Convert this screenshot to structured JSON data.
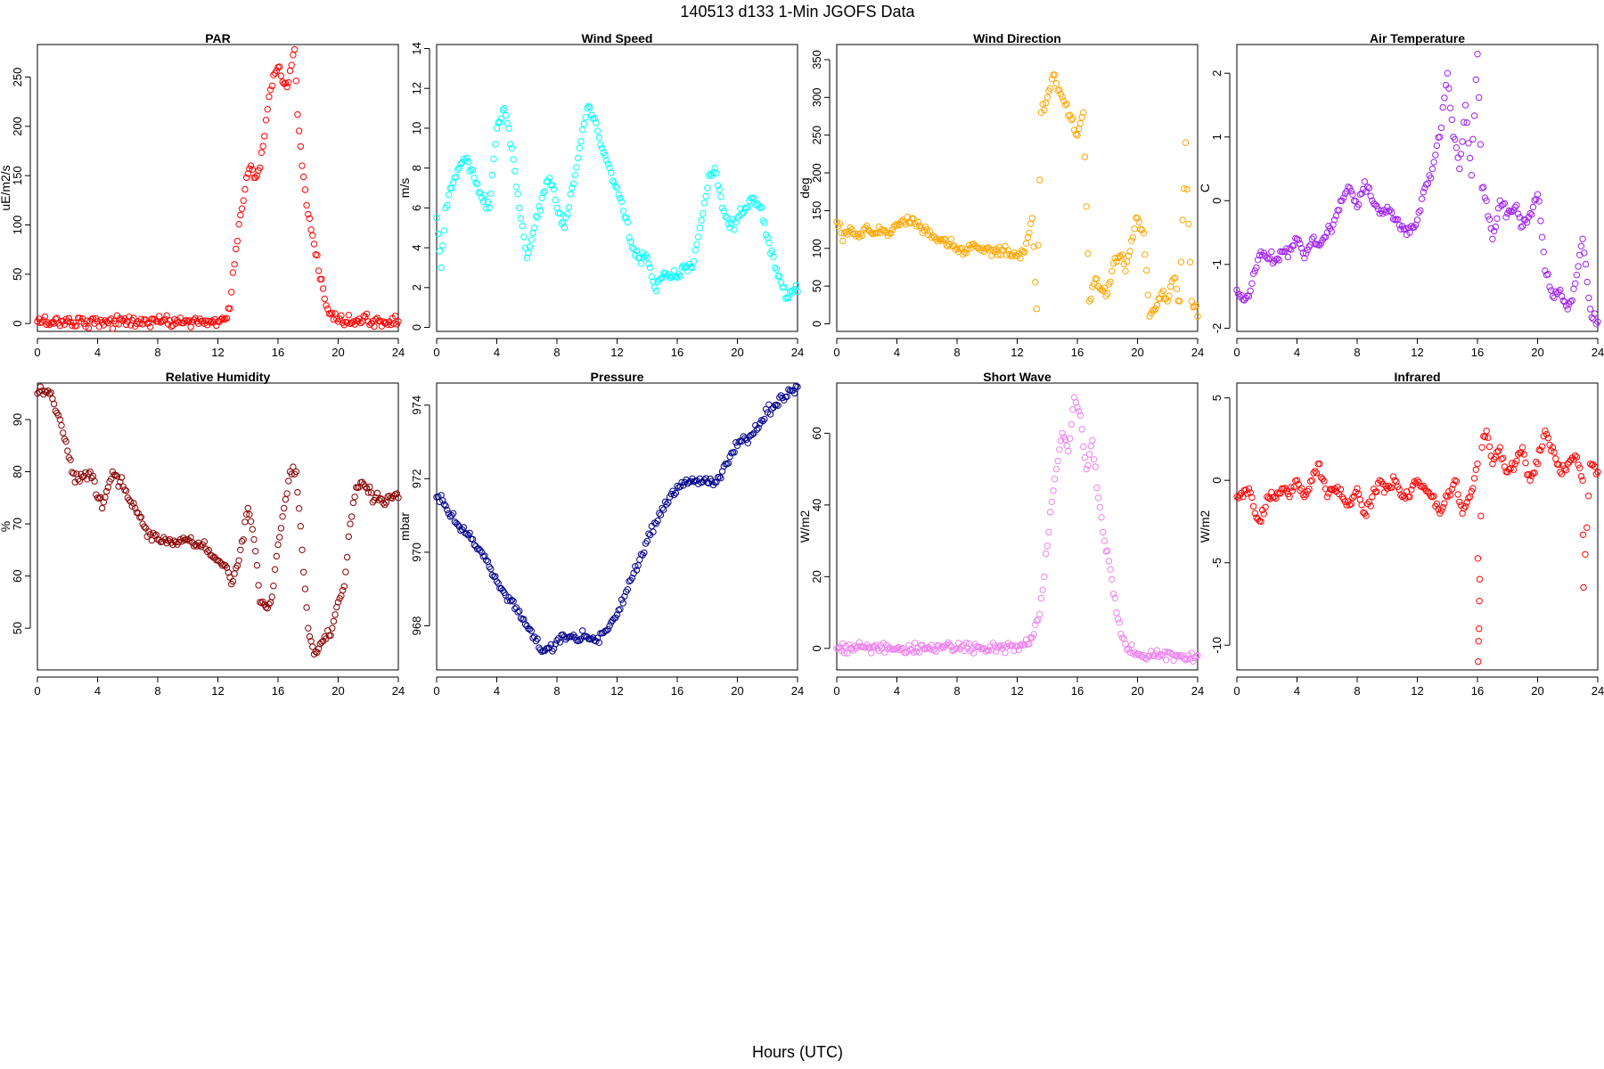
{
  "figure": {
    "title": "140513   d133   1-Min  JGOFS Data",
    "xlabel": "Hours (UTC)"
  },
  "chart_data": [
    {
      "type": "scatter",
      "title": "PAR",
      "ylabel": "uE/m2/s",
      "color": "#ff0000",
      "xlim": [
        0,
        24
      ],
      "ylim": [
        -8,
        283
      ],
      "xticks": [
        0,
        4,
        8,
        12,
        16,
        20,
        24
      ],
      "yticks": [
        0,
        50,
        100,
        150,
        200,
        250
      ],
      "series": [
        {
          "x": [
            0,
            2,
            4,
            6,
            8,
            10,
            12,
            12.4,
            12.8,
            13.1,
            13.5,
            13.9,
            14.2,
            14.5,
            14.8,
            15.1,
            15.4,
            15.7,
            16,
            16.3,
            16.6,
            16.9,
            17.1,
            17.3,
            17.6,
            17.9,
            18.2,
            18.5,
            18.8,
            19.1,
            19.4,
            19.7,
            20,
            21,
            22,
            23,
            24
          ],
          "y": [
            2,
            2,
            2,
            2,
            2,
            2,
            2,
            4,
            15,
            60,
            110,
            148,
            160,
            148,
            158,
            190,
            230,
            252,
            260,
            245,
            240,
            262,
            278,
            212,
            160,
            120,
            95,
            70,
            45,
            25,
            10,
            4,
            2,
            2,
            2,
            2,
            2
          ]
        }
      ]
    },
    {
      "type": "scatter",
      "title": "Wind Speed",
      "ylabel": "m/s",
      "color": "#00ffff",
      "xlim": [
        0,
        24
      ],
      "ylim": [
        -0.2,
        14.2
      ],
      "xticks": [
        0,
        4,
        8,
        12,
        16,
        20,
        24
      ],
      "yticks": [
        0,
        2,
        4,
        6,
        8,
        10,
        12,
        14
      ],
      "series": [
        {
          "x": [
            0,
            0.3,
            0.6,
            1,
            1.5,
            2,
            2.5,
            3,
            3.5,
            4,
            4.5,
            5,
            5.5,
            6,
            6.5,
            7,
            7.5,
            8,
            8.5,
            9,
            9.5,
            10,
            10.5,
            11,
            11.5,
            12,
            12.5,
            13,
            13.5,
            14,
            14.5,
            15,
            15.5,
            16,
            16.5,
            17,
            17.5,
            18,
            18.5,
            19,
            19.5,
            20,
            20.5,
            21,
            21.5,
            22,
            22.5,
            23,
            23.5,
            24
          ],
          "y": [
            5.5,
            3,
            6,
            7,
            8,
            8.5,
            7.5,
            6.5,
            6,
            10,
            11,
            9,
            6,
            3.5,
            5,
            6.5,
            7.5,
            6,
            5,
            7,
            9,
            11,
            10.5,
            9,
            8,
            7,
            5.5,
            4,
            3.5,
            3.5,
            2,
            2.5,
            2.5,
            2.5,
            3,
            3,
            5,
            7,
            8,
            6,
            5,
            5.5,
            6,
            6.5,
            6,
            4.5,
            3,
            2,
            1.8,
            1.8
          ]
        }
      ]
    },
    {
      "type": "scatter",
      "title": "Wind Direction",
      "ylabel": "deg",
      "color": "#ffa500",
      "xlim": [
        0,
        24
      ],
      "ylim": [
        -10,
        370
      ],
      "xticks": [
        0,
        4,
        8,
        12,
        16,
        20,
        24
      ],
      "yticks": [
        0,
        50,
        100,
        150,
        200,
        250,
        300,
        350
      ],
      "series": [
        {
          "x": [
            0,
            0.5,
            1,
            1.5,
            2,
            2.5,
            3,
            3.5,
            4,
            4.5,
            5,
            5.5,
            6,
            6.5,
            7,
            7.5,
            8,
            8.5,
            9,
            9.5,
            10,
            10.5,
            11,
            11.5,
            12,
            12.5,
            13,
            13.3,
            13.6,
            14,
            14.4,
            14.8,
            15.2,
            15.6,
            16,
            16.4,
            16.8,
            17.2,
            17.6,
            18,
            18.4,
            18.8,
            19.2,
            19.6,
            20,
            20.4,
            20.8,
            21.2,
            21.6,
            22,
            22.4,
            22.8,
            23.2,
            23.6,
            24
          ],
          "y": [
            135,
            120,
            125,
            115,
            130,
            120,
            125,
            120,
            130,
            135,
            140,
            130,
            125,
            115,
            110,
            105,
            100,
            95,
            105,
            100,
            100,
            95,
            98,
            92,
            90,
            95,
            140,
            20,
            280,
            300,
            330,
            310,
            290,
            270,
            250,
            280,
            30,
            60,
            45,
            40,
            80,
            90,
            70,
            110,
            140,
            120,
            10,
            20,
            40,
            30,
            60,
            30,
            240,
            30,
            10
          ]
        }
      ]
    },
    {
      "type": "scatter",
      "title": "Air Temperature",
      "ylabel": "C",
      "color": "#a020f0",
      "xlim": [
        0,
        24
      ],
      "ylim": [
        -2.05,
        2.45
      ],
      "xticks": [
        0,
        4,
        8,
        12,
        16,
        20,
        24
      ],
      "yticks": [
        -2,
        -1,
        0,
        1,
        2
      ],
      "series": [
        {
          "x": [
            0,
            0.4,
            0.8,
            1.2,
            1.6,
            2,
            2.5,
            3,
            3.5,
            4,
            4.5,
            5,
            5.5,
            6,
            6.5,
            7,
            7.5,
            8,
            8.5,
            9,
            9.5,
            10,
            10.5,
            11,
            11.5,
            12,
            12.5,
            13,
            13.5,
            14,
            14.4,
            14.8,
            15.2,
            15.6,
            16,
            16.3,
            16.6,
            17,
            17.5,
            18,
            18.5,
            19,
            19.5,
            20,
            20.5,
            21,
            21.5,
            22,
            22.5,
            23,
            23.5,
            24
          ],
          "y": [
            -1.4,
            -1.55,
            -1.5,
            -1.1,
            -0.8,
            -0.9,
            -0.95,
            -0.8,
            -0.75,
            -0.6,
            -0.9,
            -0.6,
            -0.7,
            -0.5,
            -0.3,
            0,
            0.2,
            -0.1,
            0.3,
            0,
            -0.2,
            -0.1,
            -0.3,
            -0.4,
            -0.5,
            -0.3,
            0.2,
            0.5,
            1,
            2,
            1,
            0.5,
            1.5,
            0.4,
            2.3,
            0.2,
            0,
            -0.6,
            0,
            -0.2,
            -0.1,
            -0.4,
            -0.2,
            0.1,
            -1.1,
            -1.5,
            -1.4,
            -1.7,
            -1.3,
            -0.6,
            -1.7,
            -1.9
          ]
        }
      ]
    },
    {
      "type": "scatter",
      "title": "Relative Humidity",
      "ylabel": "%",
      "color": "#8b0000",
      "xlim": [
        0,
        24
      ],
      "ylim": [
        42,
        97
      ],
      "xticks": [
        0,
        4,
        8,
        12,
        16,
        20,
        24
      ],
      "yticks": [
        50,
        60,
        70,
        80,
        90
      ],
      "series": [
        {
          "x": [
            0,
            0.3,
            0.7,
            1,
            1.5,
            2,
            2.5,
            3,
            3.5,
            4,
            4.3,
            4.7,
            5,
            5.5,
            6,
            6.5,
            7,
            7.5,
            8,
            8.5,
            9,
            9.5,
            10,
            10.5,
            11,
            11.5,
            12,
            12.5,
            13,
            13.5,
            14,
            14.4,
            14.8,
            15.2,
            15.6,
            16,
            16.4,
            16.8,
            17.2,
            17.6,
            18,
            18.4,
            18.8,
            19.2,
            19.6,
            20,
            20.4,
            20.8,
            21.2,
            21.6,
            22,
            22.5,
            23,
            23.5,
            24
          ],
          "y": [
            95,
            95.5,
            95.5,
            94,
            90,
            84,
            78,
            79,
            80,
            75,
            73,
            77,
            80,
            78,
            75,
            73,
            70,
            68,
            67,
            67,
            66,
            67,
            67,
            66,
            66,
            64,
            63,
            62,
            59,
            65,
            73,
            67,
            55,
            54,
            56,
            66,
            73,
            80,
            80,
            65,
            50,
            45,
            47,
            48,
            50,
            55,
            58,
            70,
            77,
            78,
            76,
            75,
            74,
            75,
            75
          ]
        }
      ]
    },
    {
      "type": "scatter",
      "title": "Pressure",
      "ylabel": "mbar",
      "color": "#00008b",
      "xlim": [
        0,
        24
      ],
      "ylim": [
        966.8,
        974.6
      ],
      "xticks": [
        0,
        4,
        8,
        12,
        16,
        20,
        24
      ],
      "yticks": [
        968,
        970,
        972,
        974
      ],
      "series": [
        {
          "x": [
            0,
            0.5,
            1,
            1.5,
            2,
            2.5,
            3,
            3.5,
            4,
            4.5,
            5,
            5.5,
            6,
            6.5,
            7,
            7.5,
            8,
            8.5,
            9,
            9.5,
            10,
            10.5,
            11,
            11.5,
            12,
            12.5,
            13,
            13.5,
            14,
            14.5,
            15,
            15.5,
            16,
            16.5,
            17,
            17.5,
            18,
            18.5,
            19,
            19.5,
            20,
            20.5,
            21,
            21.5,
            22,
            22.5,
            23,
            23.5,
            24
          ],
          "y": [
            971.5,
            971.3,
            971,
            970.7,
            970.5,
            970.2,
            970,
            969.6,
            969.2,
            968.9,
            968.7,
            968.4,
            968,
            967.7,
            967.3,
            967.4,
            967.6,
            967.7,
            967.7,
            967.6,
            967.7,
            967.6,
            967.8,
            968,
            968.3,
            968.8,
            969.3,
            969.8,
            970.3,
            970.8,
            971.2,
            971.5,
            971.8,
            971.9,
            972,
            972,
            971.9,
            971.9,
            972.2,
            972.6,
            972.9,
            973.1,
            973.2,
            973.5,
            973.8,
            974,
            974.2,
            974.4,
            974.5
          ]
        }
      ]
    },
    {
      "type": "scatter",
      "title": "Short Wave",
      "ylabel": "W/m2",
      "color": "#ee82ee",
      "xlim": [
        0,
        24
      ],
      "ylim": [
        -6,
        74
      ],
      "xticks": [
        0,
        4,
        8,
        12,
        16,
        20,
        24
      ],
      "yticks": [
        0,
        20,
        40,
        60
      ],
      "series": [
        {
          "x": [
            0,
            1,
            2,
            3,
            4,
            5,
            6,
            7,
            7.5,
            8,
            9,
            10,
            11,
            12,
            12.5,
            13,
            13.4,
            13.8,
            14.2,
            14.6,
            15,
            15.4,
            15.8,
            16.2,
            16.6,
            17,
            17.4,
            17.8,
            18.2,
            18.6,
            19,
            19.4,
            19.8,
            20.2,
            20.6,
            21,
            21.5,
            22,
            22.5,
            23,
            23.5,
            24
          ],
          "y": [
            0,
            0,
            1,
            0,
            0,
            -0.5,
            0,
            0.5,
            1,
            0,
            0,
            -0.5,
            0,
            0.5,
            1,
            3,
            8,
            20,
            38,
            50,
            60,
            55,
            70,
            65,
            50,
            58,
            42,
            30,
            22,
            10,
            3,
            0,
            -1,
            -2,
            -3,
            -2,
            -2,
            -1,
            -2,
            -2,
            -3,
            -2
          ]
        }
      ]
    },
    {
      "type": "scatter",
      "title": "Infrared",
      "ylabel": "W/m2",
      "color": "#ff0000",
      "xlim": [
        0,
        24
      ],
      "ylim": [
        -11.5,
        5.9
      ],
      "xticks": [
        0,
        4,
        8,
        12,
        16,
        20,
        24
      ],
      "yticks": [
        -10,
        -5,
        0,
        5
      ],
      "series": [
        {
          "x": [
            0,
            0.4,
            0.8,
            1.2,
            1.6,
            2,
            2.5,
            3,
            3.5,
            4,
            4.5,
            5,
            5.5,
            6,
            6.5,
            7,
            7.5,
            8,
            8.5,
            9,
            9.5,
            10,
            10.5,
            11,
            11.5,
            12,
            12.5,
            13,
            13.5,
            14,
            14.5,
            15,
            15.5,
            16,
            16.05,
            16.1,
            16.15,
            16.3,
            16.6,
            17,
            17.5,
            18,
            18.5,
            19,
            19.5,
            20,
            20.5,
            21,
            21.5,
            22,
            22.5,
            23,
            23.05,
            23.5,
            24
          ],
          "y": [
            -1,
            -1,
            -0.5,
            -2,
            -2.5,
            -1,
            -1,
            -0.5,
            -1,
            0,
            -1,
            0,
            1,
            -1,
            -0.5,
            -1,
            -1.5,
            -0.5,
            -2,
            -1,
            0,
            -0.5,
            0,
            -1,
            -1,
            0,
            -0.5,
            -1,
            -2,
            -1,
            0,
            -2,
            -1,
            1,
            -11,
            -9,
            -6,
            2,
            3,
            1,
            2,
            0.5,
            1,
            2,
            0,
            1,
            3,
            2,
            0.5,
            1,
            1.5,
            0,
            -6.5,
            1,
            0.5
          ]
        }
      ]
    }
  ]
}
